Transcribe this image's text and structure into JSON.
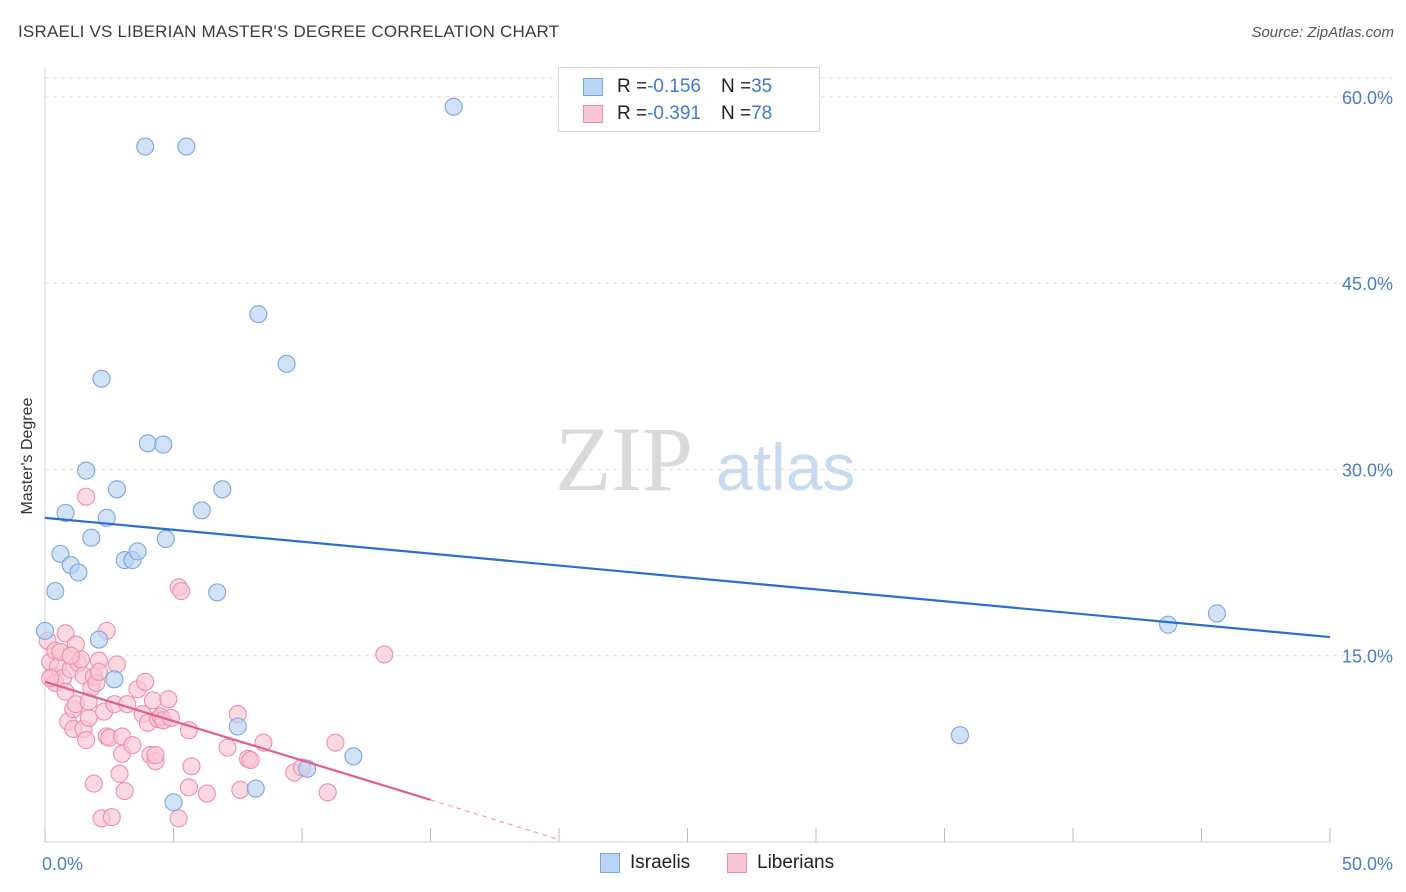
{
  "title": "ISRAELI VS LIBERIAN MASTER'S DEGREE CORRELATION CHART",
  "source": "Source: ZipAtlas.com",
  "watermark": {
    "zip": "ZIP",
    "atlas": "atlas"
  },
  "legend": {
    "rows": [
      {
        "r_label": "R = ",
        "r_value": "-0.156",
        "n_label": "N = ",
        "n_value": "35"
      },
      {
        "r_label": "R = ",
        "r_value": "-0.391",
        "n_label": "N = ",
        "n_value": "78"
      }
    ],
    "bottom": [
      "Israelis",
      "Liberians"
    ]
  },
  "colors": {
    "israelis_fill": "#b8d3f3",
    "israelis_stroke": "#7aa6dc",
    "israelis_line": "#2a6fcc",
    "liberians_fill": "#f9c4d4",
    "liberians_stroke": "#ec8fab",
    "liberians_line": "#e0608a",
    "tick_text": "#4a7ec9"
  },
  "chart_data": {
    "type": "scatter",
    "title": "ISRAELI VS LIBERIAN MASTER'S DEGREE CORRELATION CHART",
    "xlabel": "",
    "ylabel": "Master's Degree",
    "xlim": [
      0,
      50
    ],
    "ylim": [
      0,
      62
    ],
    "x_tick_labels": [
      "0.0%",
      "50.0%"
    ],
    "y_ticks": [
      15,
      30,
      45,
      60
    ],
    "y_tick_labels": [
      "15.0%",
      "30.0%",
      "45.0%",
      "60.0%"
    ],
    "series": [
      {
        "name": "Israelis",
        "r": -0.156,
        "n": 35,
        "trend": {
          "x0": 0,
          "y0": 26.1,
          "x1": 50,
          "y1": 16.5
        },
        "points": [
          [
            0.0,
            17.0
          ],
          [
            0.4,
            20.2
          ],
          [
            0.6,
            23.2
          ],
          [
            0.8,
            26.5
          ],
          [
            1.0,
            22.3
          ],
          [
            1.3,
            21.7
          ],
          [
            1.6,
            29.9
          ],
          [
            1.8,
            24.5
          ],
          [
            2.1,
            16.3
          ],
          [
            2.2,
            37.3
          ],
          [
            2.4,
            26.1
          ],
          [
            2.7,
            13.1
          ],
          [
            2.8,
            28.4
          ],
          [
            3.1,
            22.7
          ],
          [
            3.4,
            22.7
          ],
          [
            3.6,
            23.4
          ],
          [
            3.9,
            56.0
          ],
          [
            4.0,
            32.1
          ],
          [
            4.6,
            32.0
          ],
          [
            4.7,
            24.4
          ],
          [
            5.0,
            3.2
          ],
          [
            5.5,
            56.0
          ],
          [
            6.1,
            26.7
          ],
          [
            6.7,
            20.1
          ],
          [
            6.9,
            28.4
          ],
          [
            7.5,
            9.3
          ],
          [
            8.2,
            4.3
          ],
          [
            8.3,
            42.5
          ],
          [
            9.4,
            38.5
          ],
          [
            10.2,
            5.9
          ],
          [
            12.0,
            6.9
          ],
          [
            15.9,
            59.2
          ],
          [
            35.6,
            8.6
          ],
          [
            43.7,
            17.5
          ],
          [
            45.6,
            18.4
          ]
        ]
      },
      {
        "name": "Liberians",
        "r": -0.391,
        "n": 78,
        "trend": {
          "x0": 0,
          "y0": 12.9,
          "x1": 15.0,
          "y1": 3.4,
          "dash_x1": 20.0,
          "dash_y1": 0.2
        },
        "points": [
          [
            0.1,
            16.2
          ],
          [
            0.2,
            14.5
          ],
          [
            0.3,
            13.3
          ],
          [
            0.4,
            15.4
          ],
          [
            0.4,
            12.8
          ],
          [
            0.5,
            14.1
          ],
          [
            0.6,
            15.3
          ],
          [
            0.7,
            13.2
          ],
          [
            0.8,
            16.8
          ],
          [
            0.8,
            12.1
          ],
          [
            0.9,
            9.7
          ],
          [
            1.0,
            15.0
          ],
          [
            1.0,
            13.9
          ],
          [
            1.1,
            9.1
          ],
          [
            1.1,
            10.7
          ],
          [
            1.2,
            15.9
          ],
          [
            1.2,
            11.1
          ],
          [
            1.3,
            14.4
          ],
          [
            1.4,
            14.7
          ],
          [
            1.5,
            13.4
          ],
          [
            1.5,
            9.1
          ],
          [
            1.6,
            8.2
          ],
          [
            1.6,
            27.8
          ],
          [
            1.7,
            10.0
          ],
          [
            1.7,
            11.3
          ],
          [
            1.8,
            12.4
          ],
          [
            1.9,
            13.3
          ],
          [
            1.9,
            4.7
          ],
          [
            2.0,
            12.8
          ],
          [
            2.1,
            14.6
          ],
          [
            2.1,
            13.7
          ],
          [
            2.2,
            1.9
          ],
          [
            2.3,
            10.5
          ],
          [
            2.4,
            8.5
          ],
          [
            2.4,
            17.0
          ],
          [
            2.5,
            8.4
          ],
          [
            2.6,
            2.0
          ],
          [
            2.7,
            11.1
          ],
          [
            2.8,
            14.3
          ],
          [
            2.9,
            5.5
          ],
          [
            3.0,
            8.5
          ],
          [
            3.0,
            7.1
          ],
          [
            3.1,
            4.1
          ],
          [
            3.2,
            11.1
          ],
          [
            3.4,
            7.8
          ],
          [
            3.6,
            12.3
          ],
          [
            3.8,
            10.3
          ],
          [
            3.9,
            12.9
          ],
          [
            4.0,
            9.6
          ],
          [
            4.1,
            7.0
          ],
          [
            4.2,
            11.4
          ],
          [
            4.3,
            6.5
          ],
          [
            4.3,
            7.0
          ],
          [
            4.4,
            9.9
          ],
          [
            4.5,
            10.1
          ],
          [
            4.6,
            9.8
          ],
          [
            4.8,
            11.5
          ],
          [
            4.9,
            10.0
          ],
          [
            5.2,
            1.9
          ],
          [
            5.2,
            20.5
          ],
          [
            5.3,
            20.2
          ],
          [
            5.6,
            9.0
          ],
          [
            5.6,
            4.4
          ],
          [
            5.7,
            6.1
          ],
          [
            6.3,
            3.9
          ],
          [
            7.1,
            7.6
          ],
          [
            7.5,
            10.3
          ],
          [
            7.6,
            4.2
          ],
          [
            7.9,
            6.7
          ],
          [
            8.0,
            6.6
          ],
          [
            8.5,
            8.0
          ],
          [
            9.7,
            5.6
          ],
          [
            10.0,
            6.0
          ],
          [
            11.0,
            4.0
          ],
          [
            11.3,
            8.0
          ],
          [
            13.2,
            15.1
          ],
          [
            1.0,
            15.0
          ],
          [
            0.2,
            13.2
          ]
        ]
      }
    ]
  }
}
